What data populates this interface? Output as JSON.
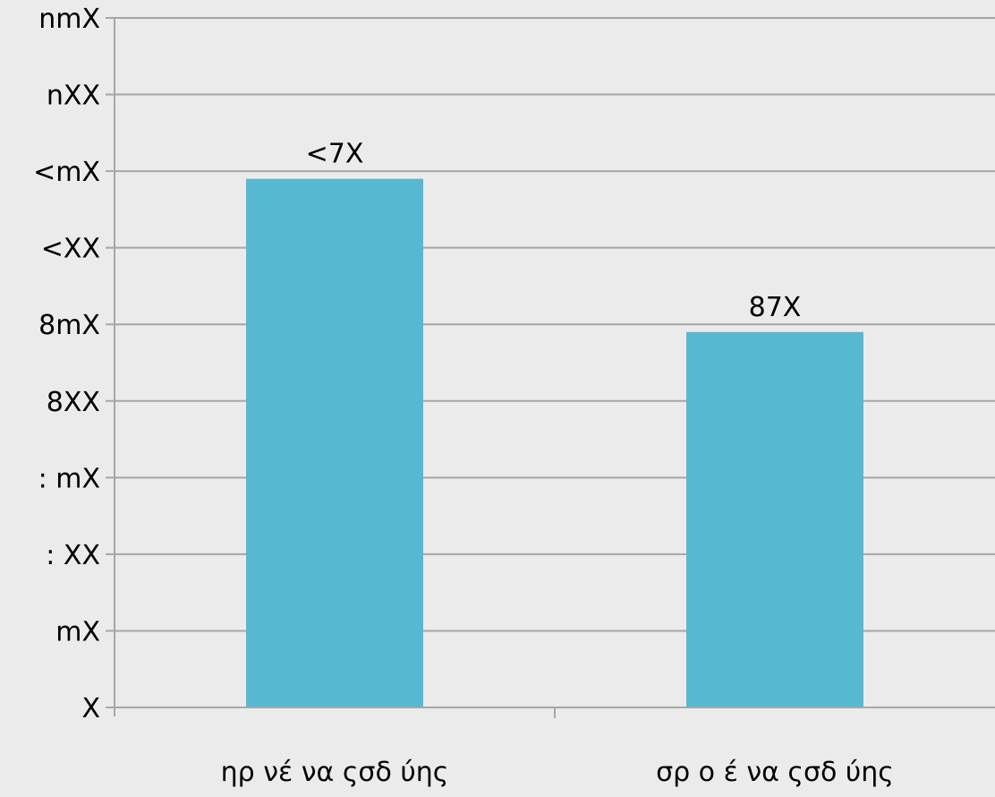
{
  "chart_data": {
    "type": "bar",
    "categories": [
      "ηρ νέ να ςσδ ύης",
      "σρ ο έ να ςσδ ύης"
    ],
    "values": [
      2950,
      1950
    ],
    "data_labels": [
      "<7X",
      "87X"
    ],
    "title": "",
    "xlabel": "",
    "ylabel": "",
    "ylim": [
      0,
      4000
    ],
    "y_ticks": [
      {
        "value": 4000,
        "label": "nmX"
      },
      {
        "value": 3500,
        "label": "nXX"
      },
      {
        "value": 3000,
        "label": "<mX"
      },
      {
        "value": 2500,
        "label": "<XX"
      },
      {
        "value": 2000,
        "label": "8mX"
      },
      {
        "value": 1500,
        "label": "8XX"
      },
      {
        "value": 1000,
        "label": ": mX"
      },
      {
        "value": 500,
        "label": ": XX"
      },
      {
        "value": 0,
        "label": "mX"
      },
      {
        "value": -500,
        "label": "X"
      }
    ],
    "grid": true,
    "legend": "none",
    "colors": {
      "bar": "#57b8d1",
      "grid": "#a6a6a6",
      "axis": "#a6a6a6",
      "background": "#ebebeb"
    }
  }
}
